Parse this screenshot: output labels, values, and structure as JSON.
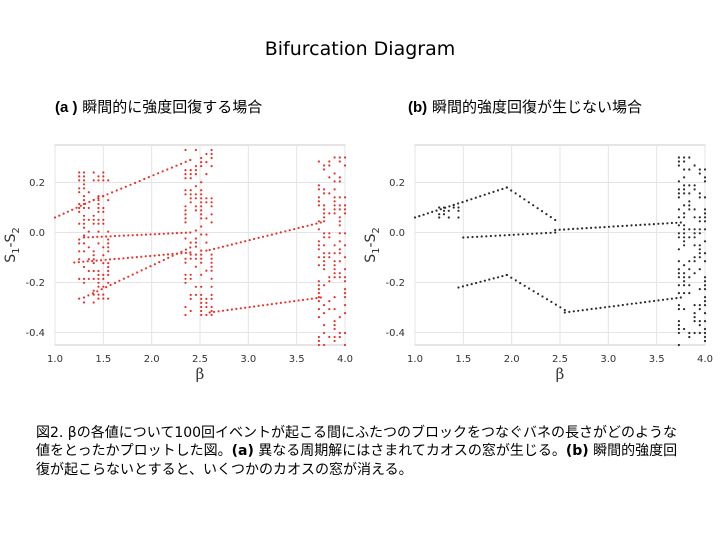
{
  "slide": {
    "title": "Bifurcation Diagram"
  },
  "panels": [
    {
      "label": "(a )",
      "title": "瞬間的に強度回復する場合"
    },
    {
      "label": "(b)",
      "title": "瞬間的強度回復が生じない場合"
    }
  ],
  "caption": {
    "text1": "図2. βの各値について100回イベントが起こる間にふたつのブロックをつなぐバネの長さがどのような値をとったかプロットした図。",
    "label_a": "(a)",
    "text2": " 異なる周期解にはさまれてカオスの窓が生じる。",
    "label_b": "(b)",
    "text3": " 瞬間的強度回復が起こらないとすると、いくつかのカオスの窓が消える。"
  },
  "chart_data": [
    {
      "type": "scatter",
      "panel": "a",
      "xlabel": "β",
      "ylabel": "S1-S2",
      "xlim": [
        1.0,
        4.0
      ],
      "ylim": [
        -0.45,
        0.35
      ],
      "xticks": [
        "1.0",
        "1.5",
        "2.0",
        "2.5",
        "3.0",
        "3.5",
        "4.0"
      ],
      "yticks": [
        "0.2",
        "0.0",
        "-0.2",
        "-0.4"
      ],
      "grid": true,
      "color": "#e8322a",
      "branches": [
        {
          "x": [
            1.0,
            1.4
          ],
          "y": [
            0.06,
            0.13
          ]
        },
        {
          "x": [
            1.4,
            2.4
          ],
          "y": [
            0.13,
            0.29
          ]
        },
        {
          "x": [
            1.3,
            2.4
          ],
          "y": [
            -0.02,
            0.0
          ]
        },
        {
          "x": [
            1.2,
            2.4
          ],
          "y": [
            -0.12,
            -0.08
          ]
        },
        {
          "x": [
            1.3,
            2.4
          ],
          "y": [
            -0.26,
            -0.06
          ]
        },
        {
          "x": [
            2.6,
            3.75
          ],
          "y": [
            -0.07,
            0.04
          ]
        },
        {
          "x": [
            2.6,
            3.75
          ],
          "y": [
            -0.32,
            -0.26
          ]
        }
      ],
      "chaos_windows": [
        {
          "x": [
            1.25,
            1.55
          ],
          "y": [
            -0.28,
            0.24
          ]
        },
        {
          "x": [
            2.35,
            2.62
          ],
          "y": [
            -0.33,
            0.33
          ]
        },
        {
          "x": [
            3.73,
            4.0
          ],
          "y": [
            -0.45,
            0.3
          ]
        }
      ]
    },
    {
      "type": "scatter",
      "panel": "b",
      "xlabel": "β",
      "ylabel": "S1-S2",
      "xlim": [
        1.0,
        4.0
      ],
      "ylim": [
        -0.45,
        0.35
      ],
      "xticks": [
        "1.0",
        "1.5",
        "2.0",
        "2.5",
        "3.0",
        "3.5",
        "4.0"
      ],
      "yticks": [
        "0.2",
        "0.0",
        "-0.2",
        "-0.4"
      ],
      "grid": true,
      "color": "#2a2a2a",
      "branches": [
        {
          "x": [
            1.0,
            1.4
          ],
          "y": [
            0.06,
            0.11
          ]
        },
        {
          "x": [
            1.4,
            1.95
          ],
          "y": [
            0.11,
            0.18
          ]
        },
        {
          "x": [
            1.95,
            2.45
          ],
          "y": [
            0.18,
            0.05
          ]
        },
        {
          "x": [
            1.5,
            2.45
          ],
          "y": [
            -0.02,
            0.0
          ]
        },
        {
          "x": [
            2.45,
            3.75
          ],
          "y": [
            0.01,
            0.04
          ]
        },
        {
          "x": [
            1.45,
            1.95
          ],
          "y": [
            -0.22,
            -0.17
          ]
        },
        {
          "x": [
            1.95,
            2.55
          ],
          "y": [
            -0.17,
            -0.31
          ]
        },
        {
          "x": [
            2.55,
            3.75
          ],
          "y": [
            -0.32,
            -0.26
          ]
        }
      ],
      "chaos_windows": [
        {
          "x": [
            1.25,
            1.45
          ],
          "y": [
            0.06,
            0.1
          ]
        },
        {
          "x": [
            3.73,
            4.0
          ],
          "y": [
            -0.45,
            0.3
          ]
        }
      ]
    }
  ]
}
